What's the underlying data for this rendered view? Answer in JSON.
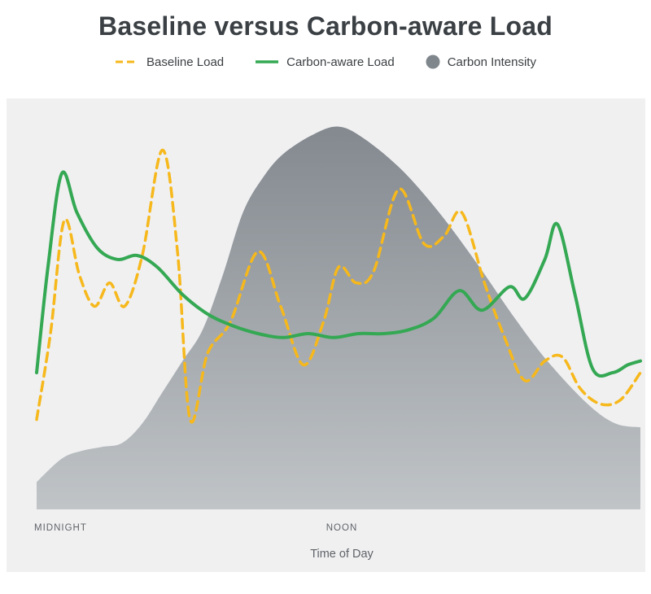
{
  "chart_data": {
    "type": "line",
    "title": "Baseline versus Carbon-aware Load",
    "xlabel": "Time of Day",
    "ylabel": "",
    "x_range": [
      0,
      24
    ],
    "y_range": [
      0,
      100
    ],
    "grid": false,
    "legend_position": "top",
    "x_ticks": [
      {
        "hour": 0,
        "label": "MIDNIGHT"
      },
      {
        "hour": 12,
        "label": "NOON"
      }
    ],
    "panel_background": "#F0F0F1",
    "area_gradient": [
      "#83898F",
      "#C0C4C7"
    ],
    "series": [
      {
        "name": "Carbon Intensity",
        "type": "area",
        "color": "#7F868C",
        "points": [
          [
            0,
            7
          ],
          [
            1,
            13
          ],
          [
            1.8,
            15
          ],
          [
            2.6,
            16
          ],
          [
            3.4,
            17
          ],
          [
            4.2,
            22
          ],
          [
            5,
            30
          ],
          [
            5.8,
            38
          ],
          [
            6.6,
            46
          ],
          [
            7.4,
            60
          ],
          [
            8.2,
            76
          ],
          [
            9,
            85
          ],
          [
            9.8,
            91
          ],
          [
            11,
            96
          ],
          [
            12,
            98
          ],
          [
            13,
            95
          ],
          [
            14.5,
            87
          ],
          [
            16,
            76
          ],
          [
            17.5,
            63
          ],
          [
            19,
            49
          ],
          [
            20.3,
            38
          ],
          [
            21.9,
            27
          ],
          [
            23,
            22
          ],
          [
            24,
            21
          ]
        ]
      },
      {
        "name": "Baseline Load",
        "type": "line",
        "style": "dashed",
        "color": "#F6B81B",
        "width": 3.5,
        "points": [
          [
            0,
            23
          ],
          [
            0.55,
            45
          ],
          [
            1.1,
            74
          ],
          [
            1.7,
            60
          ],
          [
            2.3,
            52
          ],
          [
            2.9,
            58
          ],
          [
            3.5,
            52
          ],
          [
            4.2,
            65
          ],
          [
            5,
            92
          ],
          [
            5.6,
            66
          ],
          [
            6.1,
            23
          ],
          [
            6.8,
            40
          ],
          [
            7.7,
            48
          ],
          [
            8.8,
            66
          ],
          [
            9.7,
            52
          ],
          [
            10.6,
            37
          ],
          [
            11.4,
            48
          ],
          [
            12,
            62
          ],
          [
            12.7,
            58
          ],
          [
            13.4,
            61
          ],
          [
            14.4,
            82
          ],
          [
            15.4,
            68
          ],
          [
            16.2,
            70
          ],
          [
            16.9,
            76
          ],
          [
            17.8,
            58
          ],
          [
            18.6,
            44
          ],
          [
            19.4,
            33
          ],
          [
            20.2,
            38
          ],
          [
            20.9,
            39
          ],
          [
            21.6,
            31
          ],
          [
            22.4,
            27
          ],
          [
            23.2,
            28
          ],
          [
            24,
            35
          ]
        ]
      },
      {
        "name": "Carbon-aware Load",
        "type": "line",
        "style": "solid",
        "color": "#34A853",
        "width": 4,
        "points": [
          [
            0,
            35
          ],
          [
            0.45,
            62
          ],
          [
            1,
            86
          ],
          [
            1.6,
            76
          ],
          [
            2.4,
            67
          ],
          [
            3.2,
            64
          ],
          [
            4,
            65
          ],
          [
            4.8,
            62
          ],
          [
            5.8,
            55
          ],
          [
            6.8,
            50
          ],
          [
            7.8,
            47
          ],
          [
            8.8,
            45
          ],
          [
            9.8,
            44
          ],
          [
            10.8,
            45
          ],
          [
            11.8,
            44
          ],
          [
            12.8,
            45
          ],
          [
            13.8,
            45
          ],
          [
            14.8,
            46
          ],
          [
            15.8,
            49
          ],
          [
            16.8,
            56
          ],
          [
            17.7,
            51
          ],
          [
            18.8,
            57
          ],
          [
            19.4,
            54
          ],
          [
            20.2,
            64
          ],
          [
            20.7,
            73
          ],
          [
            21.4,
            55
          ],
          [
            22.1,
            36
          ],
          [
            22.9,
            35
          ],
          [
            23.5,
            37
          ],
          [
            24,
            38
          ]
        ]
      }
    ]
  }
}
